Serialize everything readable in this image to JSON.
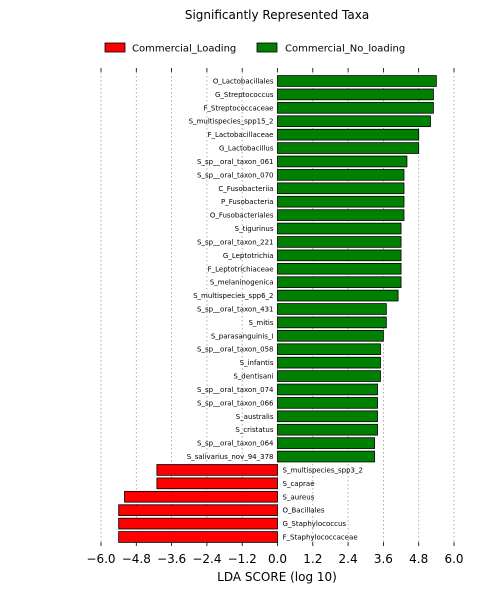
{
  "chart_data": {
    "type": "bar",
    "orientation": "horizontal",
    "title": "Significantly Represented Taxa",
    "xlabel": "LDA SCORE (log 10)",
    "xlim": [
      -6.0,
      6.0
    ],
    "xticks": [
      -6.0,
      -4.8,
      -3.6,
      -2.4,
      -1.2,
      0.0,
      1.2,
      2.4,
      3.6,
      4.8,
      6.0
    ],
    "xtick_labels": [
      "−6.0",
      "−4.8",
      "−3.6",
      "−2.4",
      "−1.2",
      "0.0",
      "1.2",
      "2.4",
      "3.6",
      "4.8",
      "6.0"
    ],
    "grid": "vertical dotted",
    "legend_position": "top-center",
    "series": [
      {
        "name": "Commercial_Loading",
        "color": "#ff0000"
      },
      {
        "name": "Commercial_No_loading",
        "color": "#008000"
      }
    ],
    "bars": [
      {
        "label": "O_Lactobacillales",
        "value": 5.4,
        "series": 1
      },
      {
        "label": "G_Streptococcus",
        "value": 5.3,
        "series": 1
      },
      {
        "label": "F_Streptococcaceae",
        "value": 5.3,
        "series": 1
      },
      {
        "label": "S_multispecies_spp15_2",
        "value": 5.2,
        "series": 1
      },
      {
        "label": "F_Lactobacillaceae",
        "value": 4.8,
        "series": 1
      },
      {
        "label": "G_Lactobacillus",
        "value": 4.8,
        "series": 1
      },
      {
        "label": "S_sp__oral_taxon_061",
        "value": 4.4,
        "series": 1
      },
      {
        "label": "S_sp__oral_taxon_070",
        "value": 4.3,
        "series": 1
      },
      {
        "label": "C_Fusobacteriia",
        "value": 4.3,
        "series": 1
      },
      {
        "label": "P_Fusobacteria",
        "value": 4.3,
        "series": 1
      },
      {
        "label": "O_Fusobacteriales",
        "value": 4.3,
        "series": 1
      },
      {
        "label": "S_tigurinus",
        "value": 4.2,
        "series": 1
      },
      {
        "label": "S_sp__oral_taxon_221",
        "value": 4.2,
        "series": 1
      },
      {
        "label": "G_Leptotrichia",
        "value": 4.2,
        "series": 1
      },
      {
        "label": "F_Leptotrichiaceae",
        "value": 4.2,
        "series": 1
      },
      {
        "label": "S_melaninogenica",
        "value": 4.2,
        "series": 1
      },
      {
        "label": "S_multispecies_spp6_2",
        "value": 4.1,
        "series": 1
      },
      {
        "label": "S_sp__oral_taxon_431",
        "value": 3.7,
        "series": 1
      },
      {
        "label": "S_mitis",
        "value": 3.7,
        "series": 1
      },
      {
        "label": "S_parasanguinis_I",
        "value": 3.6,
        "series": 1
      },
      {
        "label": "S_sp__oral_taxon_058",
        "value": 3.5,
        "series": 1
      },
      {
        "label": "S_infantis",
        "value": 3.5,
        "series": 1
      },
      {
        "label": "S_dentisani",
        "value": 3.5,
        "series": 1
      },
      {
        "label": "S_sp__oral_taxon_074",
        "value": 3.4,
        "series": 1
      },
      {
        "label": "S_sp__oral_taxon_066",
        "value": 3.4,
        "series": 1
      },
      {
        "label": "S_australis",
        "value": 3.4,
        "series": 1
      },
      {
        "label": "S_cristatus",
        "value": 3.4,
        "series": 1
      },
      {
        "label": "S_sp__oral_taxon_064",
        "value": 3.3,
        "series": 1
      },
      {
        "label": "S_salivarius_nov_94_378",
        "value": 3.3,
        "series": 1
      },
      {
        "label": "S_multispecies_spp3_2",
        "value": -4.1,
        "series": 0
      },
      {
        "label": "S_caprae",
        "value": -4.1,
        "series": 0
      },
      {
        "label": "S_aureus",
        "value": -5.2,
        "series": 0
      },
      {
        "label": "O_Bacillales",
        "value": -5.4,
        "series": 0
      },
      {
        "label": "G_Staphylococcus",
        "value": -5.4,
        "series": 0
      },
      {
        "label": "F_Staphylococcaceae",
        "value": -5.4,
        "series": 0
      }
    ]
  }
}
